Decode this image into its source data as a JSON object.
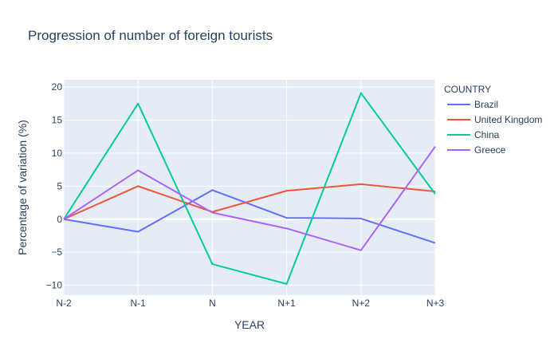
{
  "chart_data": {
    "type": "line",
    "title": "Progression of number of foreign tourists",
    "xlabel": "YEAR",
    "ylabel": "Percentage of variation (%)",
    "categories": [
      "N-2",
      "N-1",
      "N",
      "N+1",
      "N+2",
      "N+3"
    ],
    "ylim": [
      -11.5,
      21.1
    ],
    "yticks": [
      -10,
      -5,
      0,
      5,
      10,
      15,
      20
    ],
    "ytick_labels": [
      "−10",
      "−5",
      "0",
      "5",
      "10",
      "15",
      "20"
    ],
    "grid": true,
    "legend": {
      "title": "COUNTRY",
      "placement": "right"
    },
    "series": [
      {
        "name": "Brazil",
        "color": "#636efa",
        "values": [
          0,
          -1.9,
          4.4,
          0.2,
          0.1,
          -3.6
        ]
      },
      {
        "name": "United Kingdom",
        "color": "#EF553B",
        "values": [
          0,
          5.0,
          1.1,
          4.3,
          5.3,
          4.2
        ]
      },
      {
        "name": "China",
        "color": "#00cc96",
        "values": [
          0,
          17.5,
          -6.8,
          -9.8,
          19.1,
          3.8
        ]
      },
      {
        "name": "Greece",
        "color": "#ab63fa",
        "values": [
          0,
          7.4,
          1.0,
          -1.4,
          -4.7,
          11.0
        ]
      }
    ]
  }
}
